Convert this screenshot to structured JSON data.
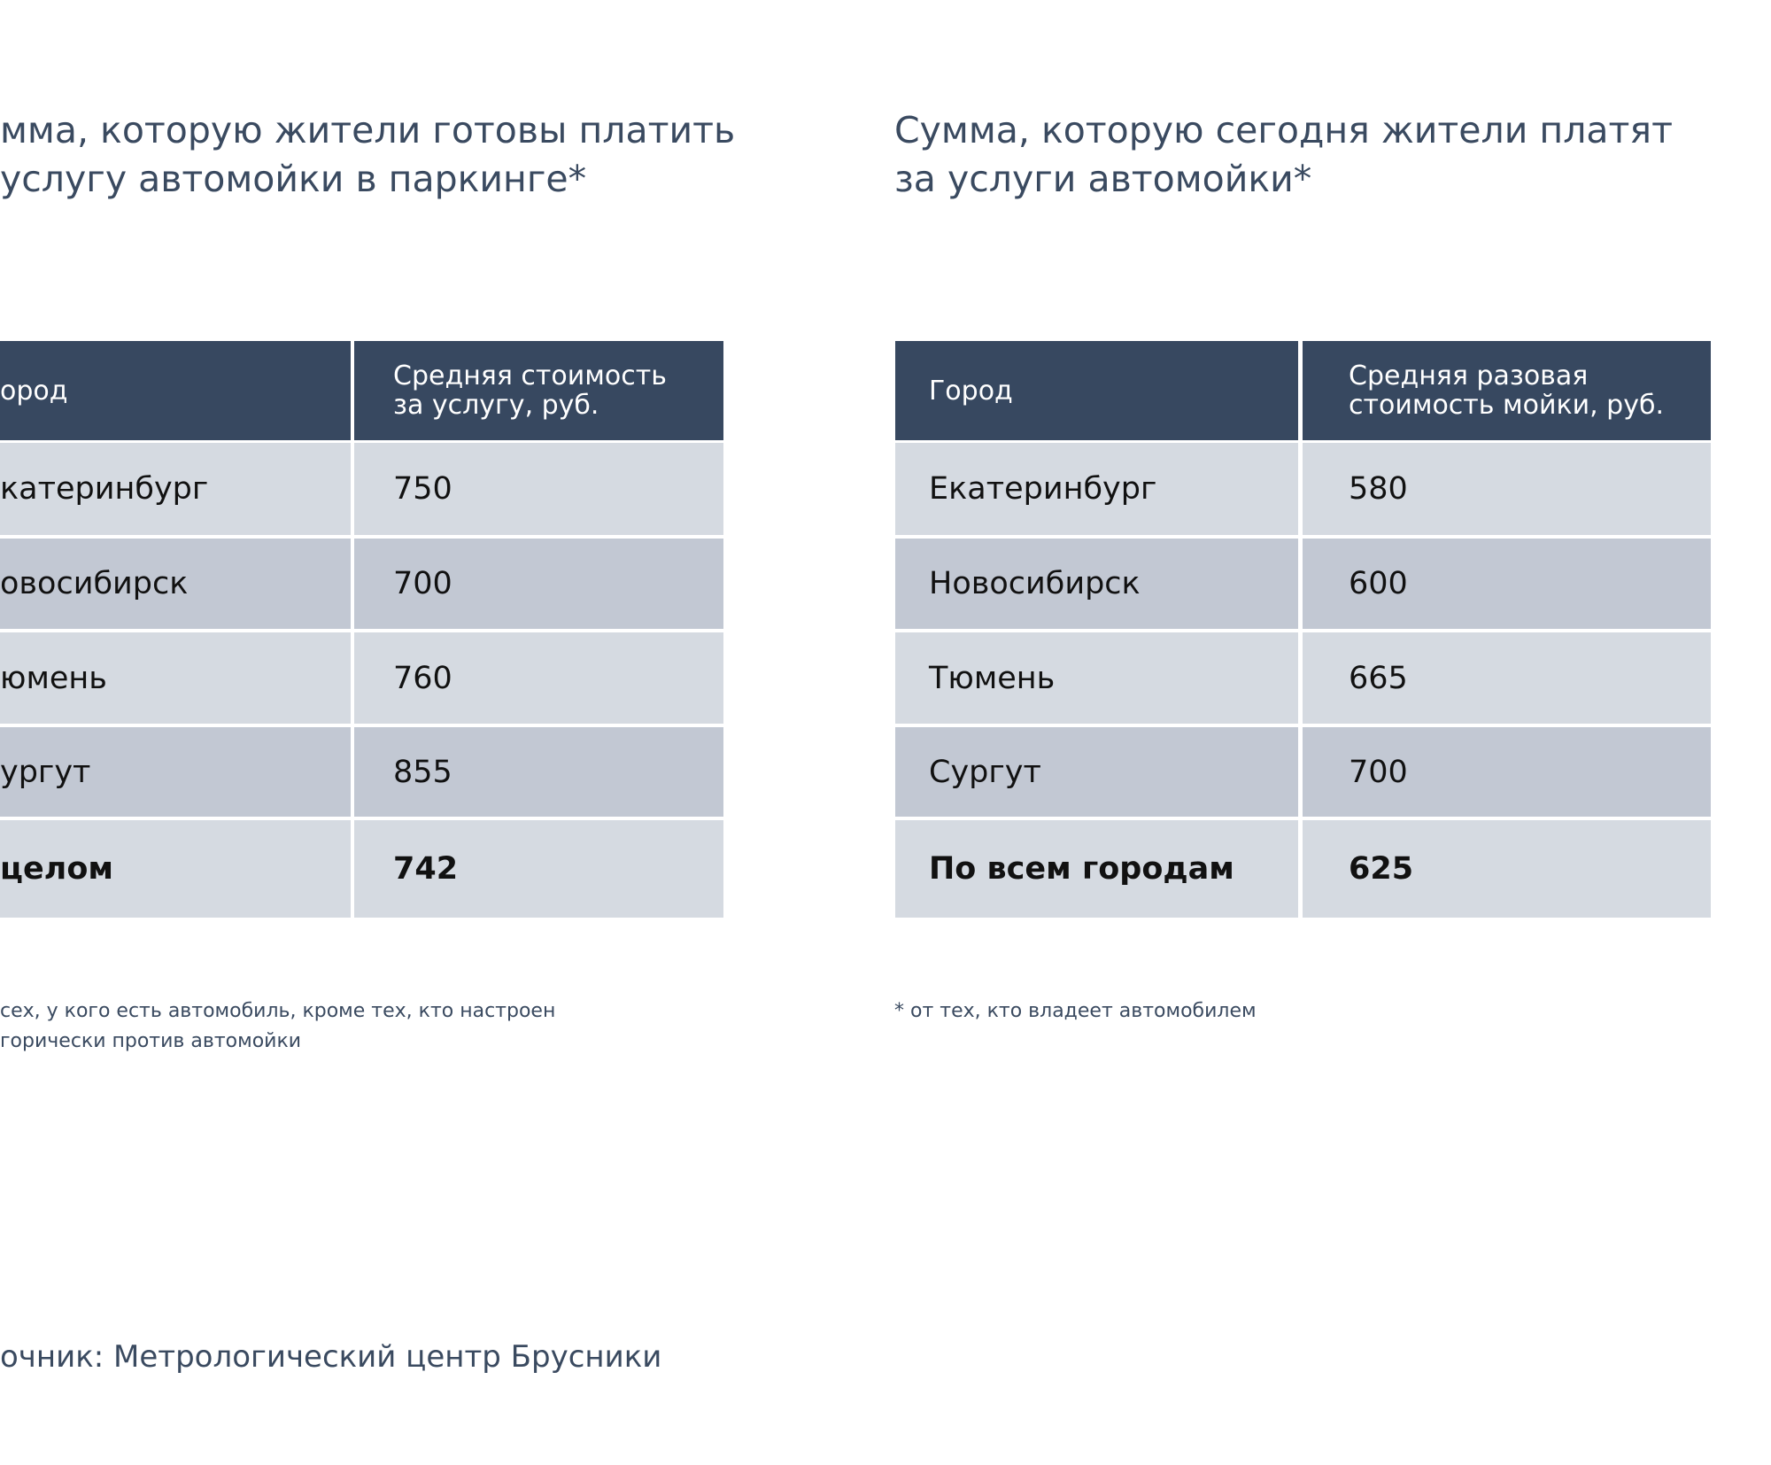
{
  "left": {
    "title": [
      "мма, которую жители готовы платить",
      "услугу автомойки в паркинге*"
    ],
    "table": {
      "header": [
        "ород",
        "Средняя стоимость\nза услугу, руб."
      ],
      "rows": [
        [
          "катеринбург",
          750
        ],
        [
          "овосибирск",
          700
        ],
        [
          "юмень",
          760
        ],
        [
          "ургут",
          855
        ],
        [
          "целом",
          742
        ]
      ]
    },
    "footnote": [
      "сех, у кого есть автомобиль, кроме тех, кто настроен",
      "горически против автомойки"
    ]
  },
  "right": {
    "title": [
      "Сумма, которую сегодня жители платят",
      "за услуги автомойки*"
    ],
    "table": {
      "header": [
        "Город",
        "Средняя разовая\nстоимость мойки, руб."
      ],
      "rows": [
        [
          "Екатеринбург",
          580
        ],
        [
          "Новосибирск",
          600
        ],
        [
          "Тюмень",
          665
        ],
        [
          "Сургут",
          700
        ],
        [
          "По всем городам",
          625
        ]
      ]
    },
    "footnote": [
      "* от тех, кто владеет автомобилем"
    ]
  },
  "source": "очник: Метрологический центр Брусники"
}
